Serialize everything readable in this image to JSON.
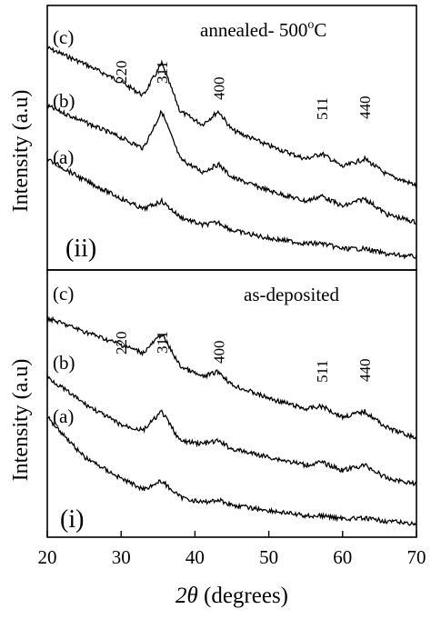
{
  "chart_data": [
    {
      "type": "line",
      "panel_label": "(ii)",
      "annotation": "annealed- 500",
      "annotation_sup": "o",
      "annotation_tail": "C",
      "ylabel": "Intensity (a.u)",
      "xlim": [
        20,
        70
      ],
      "grid": false,
      "peaks": [
        {
          "label": "220",
          "x": 30
        },
        {
          "label": "311",
          "x": 35.5
        },
        {
          "label": "400",
          "x": 43.2
        },
        {
          "label": "511",
          "x": 57.2
        },
        {
          "label": "440",
          "x": 63
        }
      ],
      "series": [
        {
          "name": "(c)",
          "x": [
            20,
            25,
            30,
            33,
            35.5,
            38,
            41,
            43.2,
            45,
            50,
            55,
            57.2,
            60,
            63,
            66,
            70
          ],
          "y": [
            0.84,
            0.78,
            0.71,
            0.66,
            0.78,
            0.6,
            0.55,
            0.6,
            0.53,
            0.47,
            0.42,
            0.44,
            0.39,
            0.42,
            0.36,
            0.32
          ]
        },
        {
          "name": "(b)",
          "x": [
            20,
            25,
            30,
            33,
            35.5,
            38,
            41,
            43.2,
            45,
            50,
            55,
            57.2,
            60,
            63,
            66,
            70
          ],
          "y": [
            0.62,
            0.56,
            0.5,
            0.46,
            0.6,
            0.42,
            0.37,
            0.4,
            0.35,
            0.3,
            0.26,
            0.28,
            0.24,
            0.27,
            0.21,
            0.18
          ]
        },
        {
          "name": "(a)",
          "x": [
            20,
            25,
            30,
            33,
            35.5,
            38,
            41,
            43.2,
            45,
            50,
            55,
            57.2,
            60,
            63,
            66,
            70
          ],
          "y": [
            0.42,
            0.34,
            0.27,
            0.23,
            0.26,
            0.2,
            0.17,
            0.18,
            0.15,
            0.12,
            0.1,
            0.1,
            0.08,
            0.08,
            0.06,
            0.05
          ]
        }
      ],
      "curve_labels": [
        "(c)",
        "(b)",
        "(a)"
      ]
    },
    {
      "type": "line",
      "panel_label": "(i)",
      "annotation": "as-deposited",
      "ylabel": "Intensity (a.u)",
      "xlabel_theta": "2θ",
      "xlabel_rest": " (degrees)",
      "xlim": [
        20,
        70
      ],
      "xticks": [
        20,
        30,
        40,
        50,
        60,
        70
      ],
      "grid": false,
      "peaks": [
        {
          "label": "220",
          "x": 30
        },
        {
          "label": "311",
          "x": 35.5
        },
        {
          "label": "400",
          "x": 43.2
        },
        {
          "label": "511",
          "x": 57.2
        },
        {
          "label": "440",
          "x": 63
        }
      ],
      "series": [
        {
          "name": "(c)",
          "x": [
            20,
            25,
            30,
            33,
            35.5,
            38,
            41,
            43.2,
            45,
            50,
            55,
            57.2,
            60,
            63,
            66,
            70
          ],
          "y": [
            0.82,
            0.77,
            0.72,
            0.69,
            0.76,
            0.64,
            0.6,
            0.62,
            0.57,
            0.52,
            0.48,
            0.49,
            0.45,
            0.47,
            0.41,
            0.37
          ]
        },
        {
          "name": "(b)",
          "x": [
            20,
            25,
            30,
            33,
            35.5,
            38,
            41,
            43.2,
            45,
            50,
            55,
            57.2,
            60,
            63,
            66,
            70
          ],
          "y": [
            0.6,
            0.5,
            0.42,
            0.4,
            0.47,
            0.36,
            0.35,
            0.36,
            0.33,
            0.3,
            0.27,
            0.28,
            0.25,
            0.27,
            0.22,
            0.2
          ]
        },
        {
          "name": "(a)",
          "x": [
            20,
            25,
            30,
            33,
            35.5,
            38,
            41,
            43.2,
            45,
            50,
            55,
            57.2,
            60,
            63,
            66,
            70
          ],
          "y": [
            0.45,
            0.3,
            0.22,
            0.18,
            0.21,
            0.15,
            0.13,
            0.14,
            0.12,
            0.1,
            0.08,
            0.08,
            0.07,
            0.07,
            0.06,
            0.05
          ]
        }
      ],
      "curve_labels": [
        "(c)",
        "(b)",
        "(a)"
      ]
    }
  ]
}
